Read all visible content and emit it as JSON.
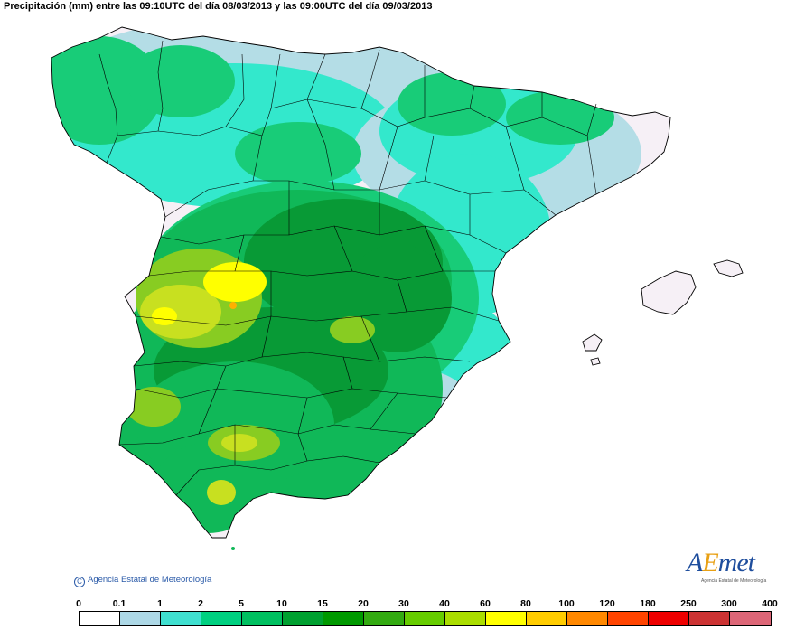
{
  "title": "Precipitación (mm) entre las 09:10UTC del día 08/03/2013 y las 09:00UTC del día 09/03/2013",
  "copyright": "Agencia Estatal de Meteorología",
  "copyright_symbol": "C",
  "logo": {
    "text_a": "A",
    "text_e": "E",
    "text_met": "met",
    "subtitle": "Agencia Estatal de Meteorología"
  },
  "legend": {
    "thresholds": [
      "0",
      "0.1",
      "1",
      "2",
      "5",
      "10",
      "15",
      "20",
      "30",
      "40",
      "60",
      "80",
      "100",
      "120",
      "180",
      "250",
      "300",
      "400"
    ],
    "colors": [
      "#ffffff",
      "#add8e6",
      "#40e0d0",
      "#00d080",
      "#00c060",
      "#00a030",
      "#009900",
      "#33aa11",
      "#66cc00",
      "#aadd00",
      "#ffff00",
      "#ffcc00",
      "#ff8800",
      "#ff4400",
      "#ee0000",
      "#cc3333",
      "#dd6677",
      "#f0b8b8"
    ]
  },
  "map": {
    "colors": {
      "land_white": "#f6f0f6",
      "lightblue": "#b4dde6",
      "cyan": "#33e8cc",
      "green_light": "#18cc78",
      "green": "#10b858",
      "green_dark": "#089a36",
      "green_yellow": "#88cc22",
      "yellow_green": "#c8e020",
      "yellow": "#ffff00",
      "orange": "#ffb000",
      "border": "#000000"
    }
  }
}
